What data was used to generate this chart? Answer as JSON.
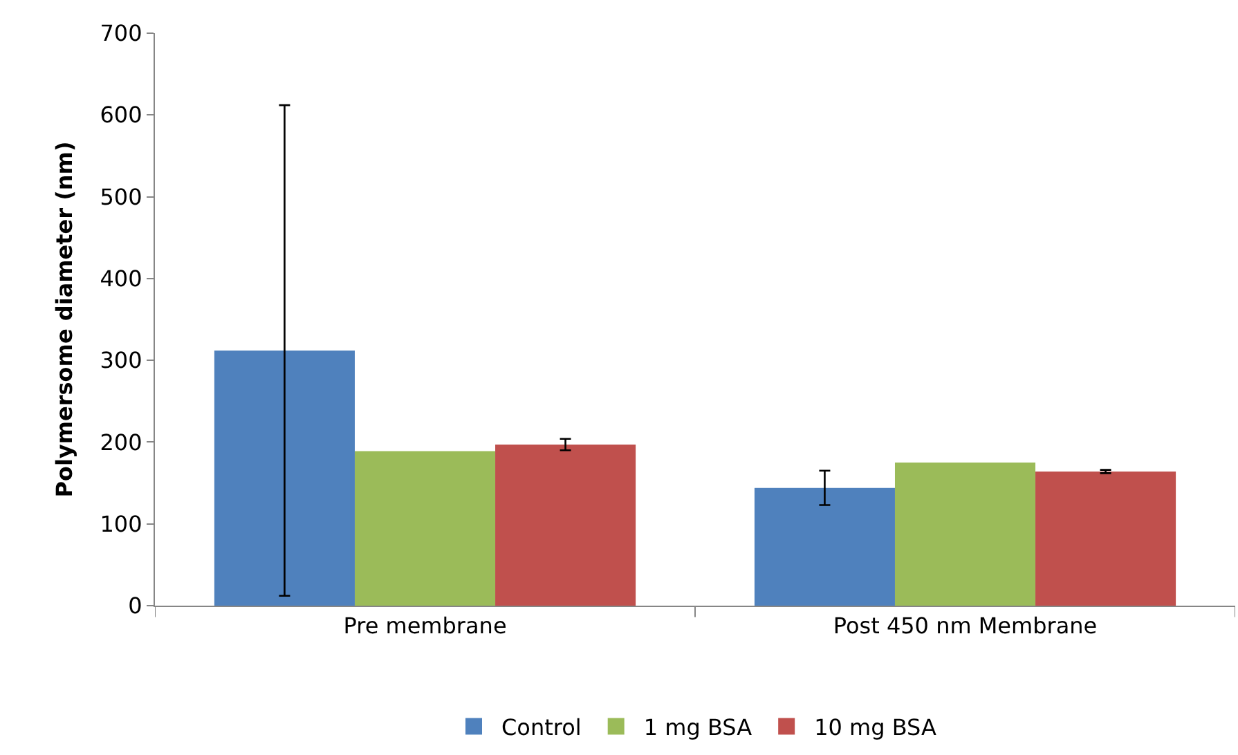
{
  "chart_data": {
    "type": "bar",
    "ylabel": "Polymersome diameter (nm)",
    "categories": [
      "Pre membrane",
      "Post 450 nm Membrane"
    ],
    "series": [
      {
        "name": "Control",
        "color": "#4f81bd",
        "values": [
          312,
          144
        ],
        "errors": [
          300,
          21
        ]
      },
      {
        "name": "1 mg BSA",
        "color": "#9bbb59",
        "values": [
          189,
          175
        ],
        "errors": [
          null,
          null
        ]
      },
      {
        "name": "10 mg BSA",
        "color": "#c0504d",
        "values": [
          197,
          164
        ],
        "errors": [
          7,
          2
        ]
      }
    ],
    "ylim": [
      0,
      700
    ],
    "yticks": [
      0,
      100,
      200,
      300,
      400,
      500,
      600,
      700
    ],
    "legend": "bottom"
  }
}
